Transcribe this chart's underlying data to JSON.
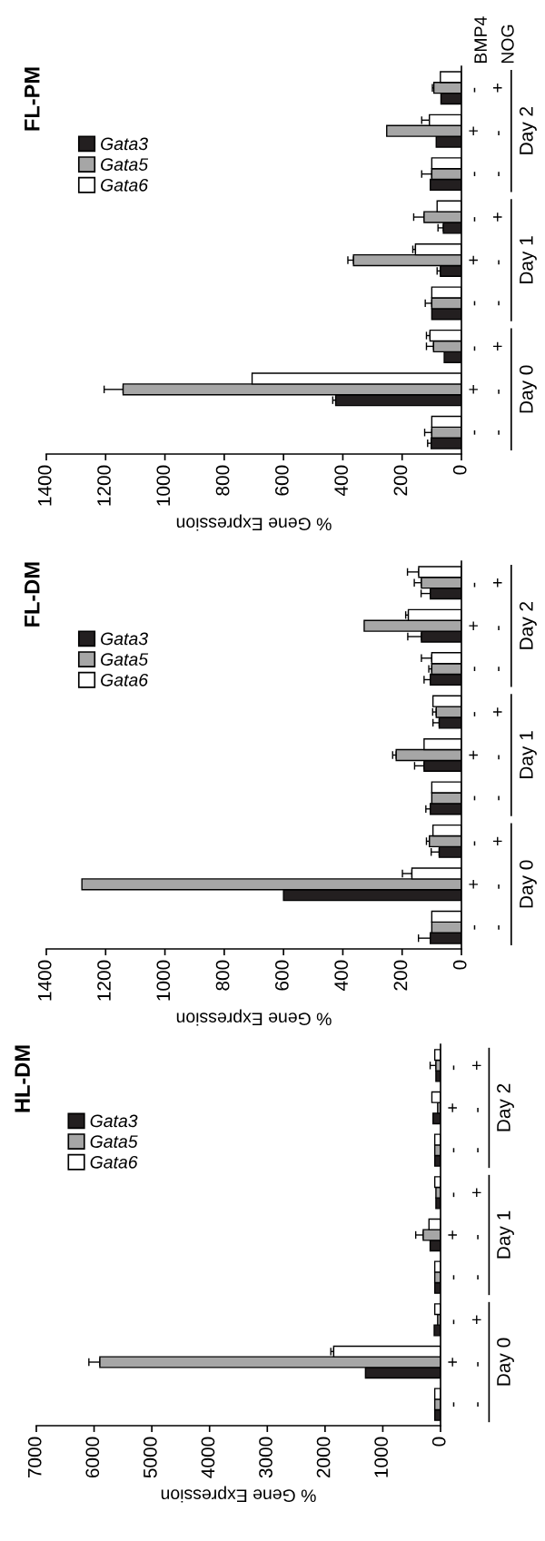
{
  "chart_data": [
    {
      "type": "bar",
      "orientation": "horizontal",
      "title": "HL-DM",
      "xlabel": "% Gene Expression",
      "categories": [
        "-\n+",
        "+\n-",
        "-\n-",
        "-\n+",
        "+\n-",
        "-\n-",
        "-\n+",
        "+\n-",
        "-\n-"
      ],
      "series": [
        {
          "name": "Gata3",
          "color": "#231f20",
          "values": [
            80,
            130,
            100,
            80,
            180,
            100,
            110,
            1300,
            100
          ],
          "errors": [
            null,
            null,
            null,
            null,
            null,
            null,
            null,
            null,
            null
          ]
        },
        {
          "name": "Gata5",
          "color": "#a6a6a6",
          "values": [
            80,
            50,
            100,
            80,
            300,
            100,
            50,
            5900,
            100
          ],
          "errors": [
            [
              80,
              180
            ],
            null,
            null,
            null,
            [
              300,
              430
            ],
            null,
            null,
            [
              5900,
              6090
            ],
            null
          ]
        },
        {
          "name": "Gata6",
          "color": "#ffffff",
          "values": [
            100,
            150,
            100,
            100,
            200,
            100,
            100,
            1850,
            100
          ],
          "errors": [
            null,
            null,
            null,
            null,
            null,
            null,
            null,
            [
              1850,
              1900
            ],
            null
          ]
        }
      ],
      "xlim": [
        7000,
        0
      ],
      "xticks": [
        0,
        1000,
        2000,
        3000,
        4000,
        5000,
        6000,
        7000
      ],
      "grid": false,
      "legend": "top left",
      "annotations": [
        "Day 2",
        "Day 1",
        "Day 0"
      ]
    },
    {
      "type": "bar",
      "orientation": "horizontal",
      "title": "FL-DM",
      "xlabel": "% Gene Expression",
      "categories": [
        "-\n+",
        "+\n-",
        "-\n-",
        "-\n+",
        "+\n-",
        "-\n-",
        "-\n+",
        "+\n-",
        "-\n-"
      ],
      "series": [
        {
          "name": "Gata3",
          "color": "#231f20",
          "values": [
            105,
            135,
            105,
            75,
            126,
            105,
            75,
            600,
            105
          ],
          "errors": [
            [
              105,
              136
            ],
            [
              135,
              181
            ],
            [
              105,
              126
            ],
            [
              75,
              96
            ],
            [
              126,
              158
            ],
            [
              105,
              120
            ],
            [
              75,
              102
            ],
            null,
            [
              105,
              145
            ]
          ]
        },
        {
          "name": "Gata5",
          "color": "#a6a6a6",
          "values": [
            135,
            328,
            100,
            85,
            220,
            100,
            108,
            1280,
            100
          ],
          "errors": [
            [
              135,
              159
            ],
            null,
            [
              100,
              110
            ],
            [
              85,
              97
            ],
            [
              220,
              232
            ],
            null,
            [
              108,
              118
            ],
            null,
            null
          ]
        },
        {
          "name": "Gata6",
          "color": "#ffffff",
          "values": [
            144,
            179,
            100,
            96,
            126,
            100,
            96,
            167,
            100
          ],
          "errors": [
            [
              144,
              182
            ],
            [
              179,
              188
            ],
            [
              100,
              135
            ],
            null,
            null,
            null,
            null,
            [
              167,
              199
            ],
            null
          ]
        }
      ],
      "xlim": [
        1400,
        0
      ],
      "xticks": [
        0,
        200,
        400,
        600,
        800,
        1000,
        1200,
        1400
      ],
      "grid": false,
      "legend": "top left",
      "annotations": [
        "Day 2",
        "Day 1",
        "Day 0"
      ]
    },
    {
      "type": "bar",
      "orientation": "horizontal",
      "title": "FL-PM",
      "xlabel": "% Gene Expression",
      "categories": [
        "-\n+",
        "+\n-",
        "-\n-",
        "-\n+",
        "+\n-",
        "-\n-",
        "-\n+",
        "+\n-",
        "-\n-"
      ],
      "series": [
        {
          "name": "Gata3",
          "color": "#231f20",
          "values": [
            69,
            85,
            105,
            61,
            71,
            100,
            58,
            424,
            102
          ],
          "errors": [
            null,
            null,
            null,
            [
              61,
              79
            ],
            [
              71,
              82
            ],
            null,
            null,
            [
              424,
              434
            ],
            [
              102,
              114
            ]
          ]
        },
        {
          "name": "Gata5",
          "color": "#a6a6a6",
          "values": [
            93,
            252,
            100,
            126,
            364,
            100,
            94,
            1141,
            100
          ],
          "errors": [
            [
              93,
              98
            ],
            null,
            [
              100,
              134
            ],
            [
              126,
              161
            ],
            [
              364,
              383
            ],
            [
              100,
              122
            ],
            [
              94,
              118
            ],
            [
              1141,
              1205
            ],
            [
              100,
              124
            ]
          ]
        },
        {
          "name": "Gata6",
          "color": "#ffffff",
          "values": [
            71,
            108,
            100,
            82,
            155,
            100,
            106,
            706,
            100
          ],
          "errors": [
            null,
            [
              108,
              134
            ],
            null,
            null,
            [
              155,
              164
            ],
            null,
            [
              106,
              118
            ],
            null,
            null
          ]
        }
      ],
      "xlim": [
        1400,
        0
      ],
      "xticks": [
        0,
        200,
        400,
        600,
        800,
        1000,
        1200,
        1400
      ],
      "grid": false,
      "legend": "top left",
      "annotations": [
        "Day 2",
        "Day 1",
        "Day 0",
        "BMP4",
        "NOG"
      ]
    }
  ]
}
